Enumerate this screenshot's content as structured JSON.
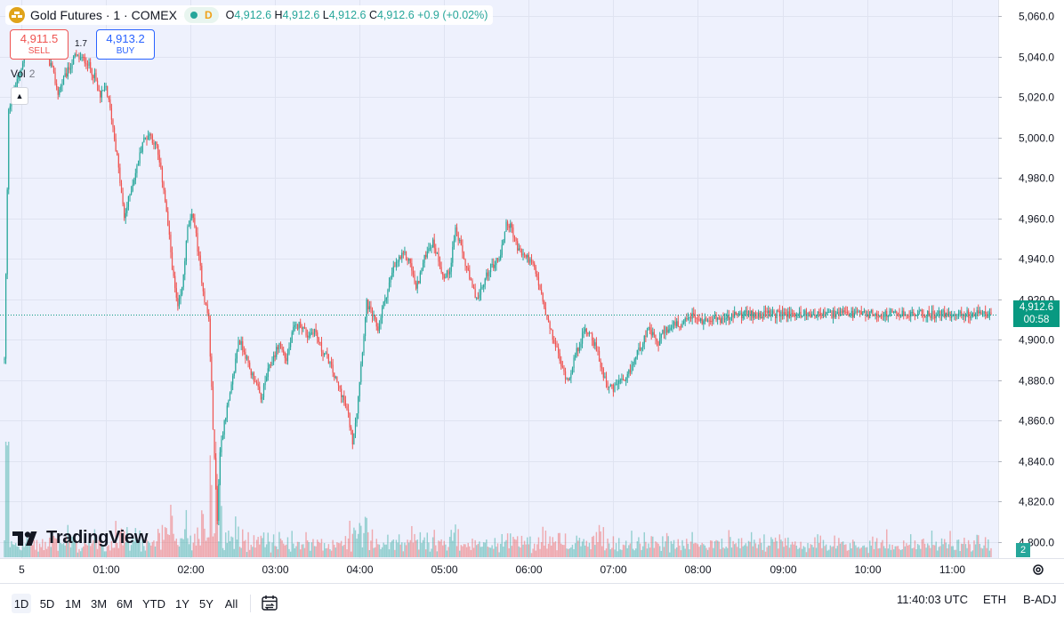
{
  "symbol": {
    "title": "Gold Futures · 1 · COMEX",
    "status_letter": "D",
    "ohlc": {
      "o_label": "O",
      "o": "4,912.6",
      "h_label": "H",
      "h": "4,912.6",
      "l_label": "L",
      "l": "4,912.6",
      "c_label": "C",
      "c": "4,912.6",
      "change": "+0.9 (+0.02%)"
    }
  },
  "trade": {
    "sell_price": "4,911.5",
    "sell_label": "SELL",
    "spread": "1.7",
    "buy_price": "4,913.2",
    "buy_label": "BUY"
  },
  "volume": {
    "label": "Vol",
    "value": "2",
    "tag": "2"
  },
  "current": {
    "price": "4,912.6",
    "countdown": "00:58"
  },
  "watermark": "TradingView",
  "toolbar": {
    "timeframes": [
      "1D",
      "5D",
      "1M",
      "3M",
      "6M",
      "YTD",
      "1Y",
      "5Y",
      "All"
    ],
    "active": "1D",
    "time": "11:40:03 UTC",
    "session": "ETH",
    "adjustment": "B-ADJ"
  },
  "colors": {
    "up": "#26a69a",
    "down": "#ef5350",
    "plot_bg": "#eef1fd",
    "grid": "#dfe3f1",
    "price_line": "#089981"
  },
  "chart_data": {
    "type": "candlestick",
    "title": "Gold Futures · 1 · COMEX",
    "interval": "1 minute",
    "ylim": [
      4792,
      5068
    ],
    "y_ticks": [
      4800,
      4820,
      4840,
      4860,
      4880,
      4900,
      4920,
      4940,
      4960,
      4980,
      5000,
      5020,
      5040,
      5060
    ],
    "y_tick_labels": [
      "4,800.0",
      "4,820.0",
      "4,840.0",
      "4,860.0",
      "4,880.0",
      "4,900.0",
      "4,920.0",
      "4,940.0",
      "4,960.0",
      "4,980.0",
      "5,000.0",
      "5,020.0",
      "5,040.0",
      "5,060.0"
    ],
    "x_ticks": [
      {
        "label": "5",
        "minute": 12
      },
      {
        "label": "01:00",
        "minute": 72
      },
      {
        "label": "02:00",
        "minute": 132
      },
      {
        "label": "03:00",
        "minute": 192
      },
      {
        "label": "04:00",
        "minute": 252
      },
      {
        "label": "05:00",
        "minute": 312
      },
      {
        "label": "06:00",
        "minute": 372
      },
      {
        "label": "07:00",
        "minute": 432
      },
      {
        "label": "08:00",
        "minute": 492
      },
      {
        "label": "09:00",
        "minute": 552
      },
      {
        "label": "10:00",
        "minute": 612
      },
      {
        "label": "11:00",
        "minute": 672
      }
    ],
    "last_minute": 700,
    "last_price": 4912.6,
    "price_path": [
      [
        0,
        4890
      ],
      [
        3,
        5015
      ],
      [
        8,
        5025
      ],
      [
        12,
        5035
      ],
      [
        17,
        5048
      ],
      [
        25,
        5045
      ],
      [
        33,
        5036
      ],
      [
        38,
        5022
      ],
      [
        43,
        5030
      ],
      [
        50,
        5040
      ],
      [
        58,
        5038
      ],
      [
        64,
        5030
      ],
      [
        68,
        5020
      ],
      [
        72,
        5025
      ],
      [
        76,
        5010
      ],
      [
        80,
        4990
      ],
      [
        85,
        4960
      ],
      [
        90,
        4975
      ],
      [
        94,
        4985
      ],
      [
        98,
        4998
      ],
      [
        103,
        5002
      ],
      [
        108,
        4995
      ],
      [
        113,
        4975
      ],
      [
        117,
        4950
      ],
      [
        120,
        4930
      ],
      [
        123,
        4915
      ],
      [
        126,
        4925
      ],
      [
        130,
        4955
      ],
      [
        134,
        4962
      ],
      [
        138,
        4940
      ],
      [
        142,
        4920
      ],
      [
        145,
        4910
      ],
      [
        147,
        4875
      ],
      [
        149,
        4840
      ],
      [
        151,
        4812
      ],
      [
        153,
        4845
      ],
      [
        156,
        4860
      ],
      [
        160,
        4872
      ],
      [
        163,
        4885
      ],
      [
        166,
        4900
      ],
      [
        170,
        4895
      ],
      [
        174,
        4885
      ],
      [
        178,
        4880
      ],
      [
        182,
        4870
      ],
      [
        186,
        4882
      ],
      [
        190,
        4890
      ],
      [
        195,
        4898
      ],
      [
        200,
        4890
      ],
      [
        205,
        4905
      ],
      [
        210,
        4908
      ],
      [
        215,
        4902
      ],
      [
        220,
        4905
      ],
      [
        225,
        4895
      ],
      [
        230,
        4890
      ],
      [
        235,
        4880
      ],
      [
        240,
        4872
      ],
      [
        244,
        4862
      ],
      [
        247,
        4850
      ],
      [
        250,
        4865
      ],
      [
        253,
        4888
      ],
      [
        257,
        4918
      ],
      [
        261,
        4912
      ],
      [
        265,
        4905
      ],
      [
        268,
        4915
      ],
      [
        272,
        4925
      ],
      [
        276,
        4935
      ],
      [
        280,
        4940
      ],
      [
        284,
        4942
      ],
      [
        288,
        4938
      ],
      [
        292,
        4925
      ],
      [
        296,
        4935
      ],
      [
        300,
        4945
      ],
      [
        304,
        4948
      ],
      [
        308,
        4940
      ],
      [
        312,
        4930
      ],
      [
        316,
        4935
      ],
      [
        320,
        4955
      ],
      [
        324,
        4945
      ],
      [
        328,
        4935
      ],
      [
        332,
        4925
      ],
      [
        336,
        4920
      ],
      [
        340,
        4928
      ],
      [
        344,
        4935
      ],
      [
        348,
        4938
      ],
      [
        352,
        4942
      ],
      [
        356,
        4958
      ],
      [
        360,
        4955
      ],
      [
        364,
        4945
      ],
      [
        368,
        4942
      ],
      [
        372,
        4940
      ],
      [
        376,
        4935
      ],
      [
        380,
        4925
      ],
      [
        384,
        4912
      ],
      [
        388,
        4903
      ],
      [
        392,
        4895
      ],
      [
        396,
        4885
      ],
      [
        400,
        4880
      ],
      [
        404,
        4890
      ],
      [
        408,
        4898
      ],
      [
        412,
        4905
      ],
      [
        416,
        4903
      ],
      [
        420,
        4895
      ],
      [
        424,
        4885
      ],
      [
        428,
        4878
      ],
      [
        432,
        4875
      ],
      [
        436,
        4880
      ],
      [
        440,
        4878
      ],
      [
        444,
        4885
      ],
      [
        448,
        4892
      ],
      [
        452,
        4898
      ],
      [
        456,
        4905
      ],
      [
        460,
        4902
      ],
      [
        464,
        4898
      ],
      [
        468,
        4905
      ],
      [
        472,
        4905
      ],
      [
        476,
        4908
      ],
      [
        480,
        4905
      ],
      [
        484,
        4910
      ],
      [
        488,
        4912
      ],
      [
        492,
        4910
      ],
      [
        496,
        4909
      ],
      [
        500,
        4911
      ],
      [
        508,
        4910
      ],
      [
        515,
        4911
      ],
      [
        520,
        4912.6
      ]
    ]
  }
}
